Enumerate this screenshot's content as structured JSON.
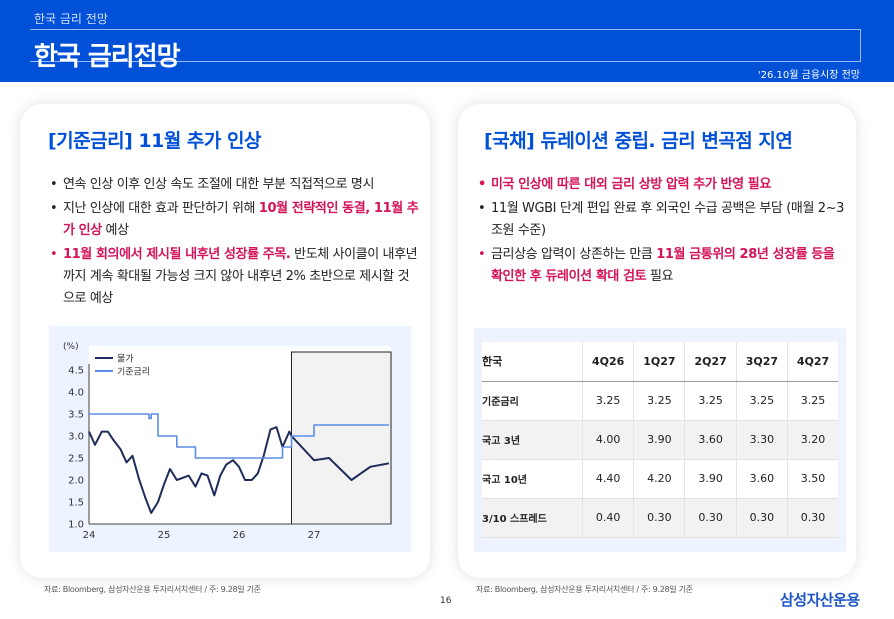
{
  "header": {
    "subtitle": "한국 금리 전망",
    "title": "한국 금리전망",
    "tag": "'26.10월 금융시장 전망"
  },
  "left_card": {
    "title": "[기준금리] 11월 추가 인상",
    "bullet1": "연속 인상 이후 인상 속도 조절에 대한 부분 직접적으로 명시",
    "bullet2_pre": "지난 인상에 대한 효과 판단하기 위해 ",
    "bullet2_em": "10월 전략적인 동결, 11월 추가 인상",
    "bullet2_post": " 예상",
    "bullet3_em": "11월 회의에서 제시될 내후년 성장률 주목.",
    "bullet3_post": " 반도체 사이클이 내후년까지 계속 확대될 가능성 크지 않아 내후년 2% 초반으로 제시할 것으로 예상",
    "source": "자료: Bloomberg, 삼성자산운용 투자리서치센터 / 주: 9.28일 기준"
  },
  "right_card": {
    "title": "[국채] 듀레이션 중립. 금리 변곡점 지연",
    "bullet1": "미국 인상에 따른 대외 금리 상방 압력 추가 반영 필요",
    "bullet2": "11월 WGBI 단계 편입 완료 후 외국인 수급 공백은 부담 (매월 2~3조원 수준)",
    "bullet3_pre": "금리상승 압력이 상존하는 만큼 ",
    "bullet3_em": "11월 금통위의  28년 성장률 등을 확인한 후 듀레이션 확대 검토",
    "bullet3_post": " 필요",
    "source": "자료: Bloomberg, 삼성자산운용 투자리서치센터 / 주: 9.28일 기준"
  },
  "table": {
    "corner": "한국",
    "columns": [
      "4Q26",
      "1Q27",
      "2Q27",
      "3Q27",
      "4Q27"
    ],
    "rows": [
      {
        "label": "기준금리",
        "values": [
          "3.25",
          "3.25",
          "3.25",
          "3.25",
          "3.25"
        ]
      },
      {
        "label": "국고 3년",
        "values": [
          "4.00",
          "3.90",
          "3.60",
          "3.30",
          "3.20"
        ]
      },
      {
        "label": "국고 10년",
        "values": [
          "4.40",
          "4.20",
          "3.90",
          "3.60",
          "3.50"
        ]
      },
      {
        "label": "3/10 스프레드",
        "values": [
          "0.40",
          "0.30",
          "0.30",
          "0.30",
          "0.30"
        ]
      }
    ]
  },
  "footer": {
    "page": "16",
    "logo": "삼성자산운용"
  },
  "chart_data": {
    "type": "line",
    "ylabel": "(%)",
    "ylim": [
      1.0,
      4.5
    ],
    "yticks": [
      "4.5",
      "4.0",
      "3.5",
      "3.0",
      "2.5",
      "2.0",
      "1.5",
      "1.0"
    ],
    "xticks": [
      "24",
      "25",
      "26",
      "27"
    ],
    "xlim": [
      24,
      28
    ],
    "legend_position": "top-left",
    "forecast_box_start": 26.7,
    "series": [
      {
        "name": "물가",
        "color": "#1f2d5a",
        "x": [
          24.0,
          24.08,
          24.17,
          24.25,
          24.33,
          24.42,
          24.5,
          24.58,
          24.67,
          24.75,
          24.83,
          24.92,
          25.0,
          25.08,
          25.17,
          25.25,
          25.33,
          25.42,
          25.5,
          25.58,
          25.67,
          25.75,
          25.83,
          25.92,
          26.0,
          26.08,
          26.17,
          26.25,
          26.33,
          26.42,
          26.5,
          26.58,
          26.67,
          26.7,
          27.0,
          27.2,
          27.5,
          27.75,
          28.0
        ],
        "values": [
          3.1,
          2.8,
          3.1,
          3.1,
          2.9,
          2.7,
          2.4,
          2.55,
          2.0,
          1.6,
          1.25,
          1.5,
          1.9,
          2.25,
          2.0,
          2.05,
          2.1,
          1.85,
          2.15,
          2.1,
          1.65,
          2.1,
          2.35,
          2.45,
          2.3,
          2.0,
          2.0,
          2.15,
          2.55,
          3.15,
          3.2,
          2.75,
          3.1,
          3.0,
          2.45,
          2.5,
          2.0,
          2.3,
          2.38
        ]
      },
      {
        "name": "기준금리",
        "color": "#5b8ee6",
        "x": [
          24.0,
          24.8,
          24.8,
          24.83,
          24.83,
          24.92,
          24.92,
          25.17,
          25.17,
          25.42,
          25.42,
          25.67,
          25.67,
          26.58,
          26.58,
          26.7,
          26.7,
          27.0,
          27.0,
          28.0
        ],
        "values": [
          3.5,
          3.5,
          3.4,
          3.4,
          3.5,
          3.5,
          3.0,
          3.0,
          2.75,
          2.75,
          2.5,
          2.5,
          2.5,
          2.5,
          2.75,
          2.75,
          3.0,
          3.0,
          3.25,
          3.25
        ]
      }
    ]
  }
}
